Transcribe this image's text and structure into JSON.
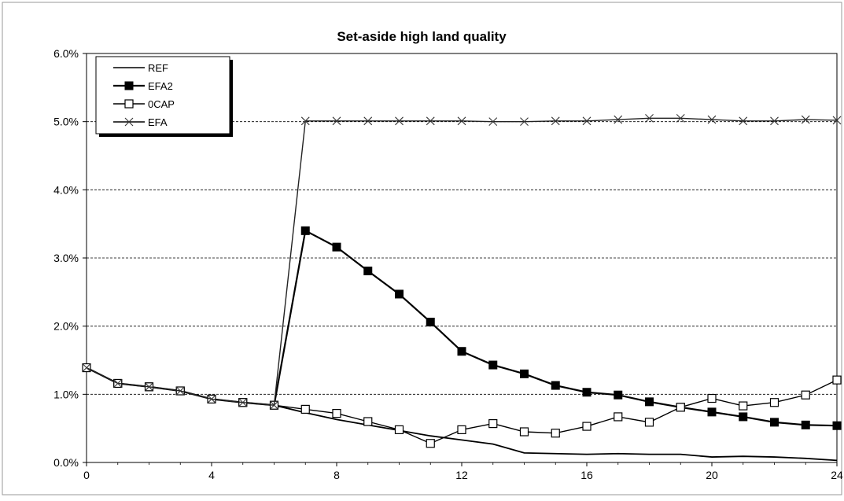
{
  "chart_data": {
    "type": "line",
    "title": "Set-aside high land quality",
    "xlabel": "",
    "ylabel": "",
    "xlim": [
      0,
      24
    ],
    "ylim": [
      0,
      6
    ],
    "x_ticks": [
      "0",
      "4",
      "8",
      "12",
      "16",
      "20",
      "24"
    ],
    "y_ticks": [
      "0.0%",
      "1.0%",
      "2.0%",
      "3.0%",
      "4.0%",
      "5.0%",
      "6.0%"
    ],
    "grid": "horizontal-dashed",
    "legend_position": "top-left",
    "x": [
      0,
      1,
      2,
      3,
      4,
      5,
      6,
      7,
      8,
      9,
      10,
      11,
      12,
      13,
      14,
      15,
      16,
      17,
      18,
      19,
      20,
      21,
      22,
      23,
      24
    ],
    "series": [
      {
        "name": "REF",
        "marker": "none",
        "values": [
          1.39,
          1.16,
          1.11,
          1.05,
          0.93,
          0.88,
          0.84,
          0.73,
          0.63,
          0.55,
          0.47,
          0.39,
          0.33,
          0.27,
          0.14,
          0.13,
          0.12,
          0.13,
          0.12,
          0.12,
          0.08,
          0.09,
          0.08,
          0.06,
          0.03
        ]
      },
      {
        "name": "EFA2",
        "marker": "filled-square",
        "values": [
          1.39,
          1.16,
          1.11,
          1.05,
          0.93,
          0.88,
          0.84,
          3.4,
          3.16,
          2.81,
          2.47,
          2.06,
          1.63,
          1.43,
          1.3,
          1.13,
          1.03,
          0.99,
          0.89,
          0.81,
          0.74,
          0.67,
          0.59,
          0.55,
          0.54
        ]
      },
      {
        "name": "0CAP",
        "marker": "open-square",
        "values": [
          1.39,
          1.16,
          1.11,
          1.05,
          0.93,
          0.88,
          0.84,
          0.78,
          0.72,
          0.6,
          0.48,
          0.28,
          0.48,
          0.57,
          0.45,
          0.43,
          0.53,
          0.67,
          0.59,
          0.81,
          0.94,
          0.83,
          0.88,
          0.99,
          1.21
        ]
      },
      {
        "name": "EFA",
        "marker": "cross",
        "values": [
          1.39,
          1.16,
          1.11,
          1.05,
          0.93,
          0.88,
          0.84,
          5.01,
          5.01,
          5.01,
          5.01,
          5.01,
          5.01,
          5.0,
          5.0,
          5.01,
          5.01,
          5.03,
          5.05,
          5.05,
          5.03,
          5.01,
          5.01,
          5.03,
          5.02
        ]
      }
    ]
  }
}
